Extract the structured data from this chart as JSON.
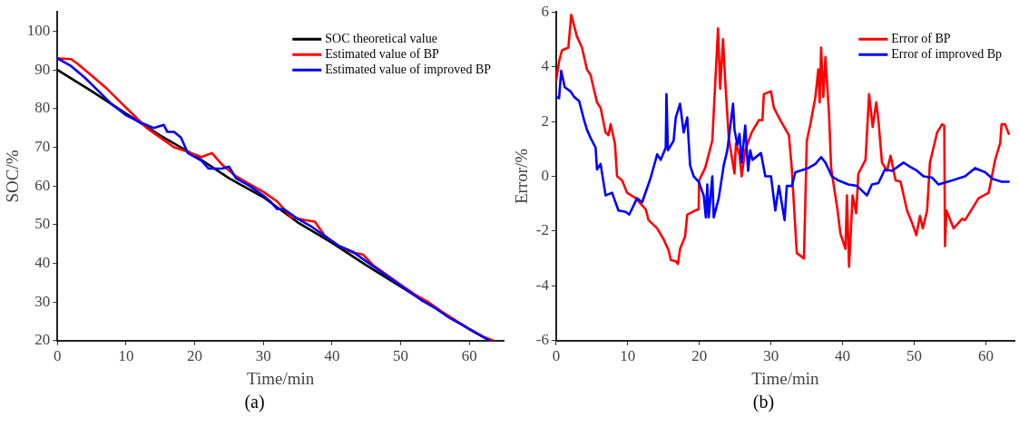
{
  "chart_data": [
    {
      "type": "line",
      "xlabel": "Time/min",
      "ylabel": "SOC/%",
      "xlim": [
        0,
        65
      ],
      "xticks": [
        0,
        10,
        20,
        30,
        40,
        50,
        60
      ],
      "ylim": [
        20,
        105
      ],
      "yticks": [
        20,
        30,
        40,
        50,
        60,
        70,
        80,
        90,
        100
      ],
      "grid": false,
      "legend": "top right",
      "marker": "none",
      "line_style": "solid",
      "annotations": [
        "(a)"
      ],
      "series": [
        {
          "name": "SOC theoretical value",
          "color": "#000000",
          "x": [
            0,
            5,
            10,
            15,
            20,
            25,
            30,
            35,
            40,
            45,
            50,
            55,
            60,
            63
          ],
          "values": [
            90,
            84.5,
            78.7,
            73,
            67.9,
            62,
            57.1,
            50.6,
            45.3,
            39.5,
            34,
            28.5,
            23,
            20
          ]
        },
        {
          "name": "Estimated value of BP",
          "color": "#ff0000",
          "x": [
            0,
            2,
            3,
            5,
            7,
            9,
            11,
            13,
            15,
            17,
            19,
            21,
            22.5,
            24,
            26,
            28,
            30,
            32,
            34,
            36,
            37.5,
            39,
            41,
            43,
            44.5,
            46,
            48,
            50,
            52,
            54,
            56,
            58,
            60,
            62,
            63.5
          ],
          "values": [
            93,
            92.8,
            91.5,
            88.5,
            85.5,
            82,
            78.5,
            75,
            72.5,
            70,
            68.8,
            67.5,
            68.5,
            65.5,
            62.5,
            60.5,
            58.5,
            56,
            52,
            51.2,
            50.8,
            47,
            44.5,
            42.8,
            42.3,
            39.5,
            37,
            34.5,
            32,
            30,
            27.5,
            25.2,
            23,
            21,
            20
          ]
        },
        {
          "name": "Estimated value of improved BP",
          "color": "#0000ff",
          "x": [
            0,
            2,
            4,
            6,
            8,
            10,
            12,
            14,
            15.5,
            16,
            17,
            18,
            19,
            21,
            22,
            24,
            25,
            26,
            28,
            30,
            31,
            32,
            33,
            35,
            37,
            39,
            41,
            43,
            45,
            47,
            49,
            51,
            53,
            55,
            57,
            59,
            61,
            63
          ],
          "values": [
            93,
            91,
            88,
            84.5,
            81,
            78.3,
            76.5,
            75,
            75.8,
            74,
            74,
            72.5,
            68.5,
            66.5,
            64.5,
            64.5,
            65,
            62,
            60,
            57.5,
            56,
            54,
            54,
            51.5,
            49.5,
            47,
            44.5,
            43,
            40.5,
            38,
            35.5,
            33,
            30.5,
            28.5,
            26,
            24,
            22,
            20
          ]
        }
      ]
    },
    {
      "type": "line",
      "xlabel": "Time/min",
      "ylabel": "Error/%",
      "xlim": [
        0,
        64
      ],
      "xticks": [
        0,
        10,
        20,
        30,
        40,
        50,
        60
      ],
      "ylim": [
        -6,
        6
      ],
      "yticks": [
        -6,
        -4,
        -2,
        0,
        2,
        4,
        6
      ],
      "grid": false,
      "legend": "top right",
      "marker": "none",
      "line_style": "solid",
      "annotations": [
        "(b)"
      ],
      "series": [
        {
          "name": "Error of BP",
          "color": "#ff0000",
          "x": [
            0,
            0.4,
            0.8,
            1.7,
            2.1,
            2.5,
            2.9,
            3.6,
            4.3,
            4.8,
            5.7,
            6.2,
            6.9,
            7.3,
            7.6,
            8.2,
            8.5,
            9.2,
            9.9,
            11.1,
            12.5,
            12.9,
            14.1,
            15.0,
            15.7,
            16.0,
            16.7,
            17.0,
            17.3,
            18.0,
            18.3,
            19.4,
            19.9,
            19.95,
            20.8,
            21.8,
            22.6,
            22.9,
            23.3,
            23.6,
            24.1,
            24.9,
            25.1,
            25.6,
            25.9,
            26.4,
            27.3,
            28.3,
            28.8,
            29.0,
            30.0,
            30.4,
            31.3,
            32.5,
            32.9,
            33.6,
            34.6,
            35.0,
            35.5,
            36.2,
            36.6,
            36.8,
            37.0,
            37.3,
            37.6,
            38.1,
            38.4,
            39.3,
            39.7,
            40.4,
            40.6,
            40.9,
            41.4,
            41.9,
            42.2,
            43.2,
            43.7,
            44.2,
            44.7,
            45.0,
            45.5,
            46.2,
            46.7,
            47.4,
            48.1,
            49.0,
            49.7,
            50.3,
            50.8,
            51.2,
            51.8,
            52.2,
            53.2,
            53.9,
            54.2,
            54.3,
            54.5,
            55.5,
            56.7,
            57.1,
            59.0,
            60.4,
            61.3,
            62.0,
            62.2,
            62.7,
            63.2
          ],
          "values": [
            3.5,
            4.2,
            4.6,
            4.7,
            5.9,
            5.5,
            5.1,
            4.7,
            3.9,
            3.7,
            2.7,
            2.5,
            1.6,
            1.5,
            1.9,
            1.2,
            0,
            -0.15,
            -0.6,
            -0.8,
            -1.2,
            -1.6,
            -1.9,
            -2.3,
            -2.7,
            -3.05,
            -3.1,
            -3.2,
            -2.65,
            -2.2,
            -1.4,
            -1.25,
            -1.2,
            -0.15,
            0.3,
            1.3,
            5.4,
            3.2,
            5,
            3.5,
            1.4,
            0.1,
            1.2,
            0.8,
            0,
            0.95,
            1.6,
            2.05,
            2.05,
            3,
            3.1,
            2.5,
            2.05,
            1.5,
            0.3,
            -2.8,
            -3,
            1.3,
            1.9,
            2.9,
            3.9,
            2.7,
            4.7,
            2.9,
            4.35,
            2.3,
            0.3,
            -1.25,
            -2.1,
            -2.65,
            -0.7,
            -3.3,
            -0.7,
            -1.35,
            0.1,
            0.6,
            3,
            1.8,
            2.7,
            2.05,
            0.5,
            0.2,
            0.75,
            -0.15,
            -0.2,
            -1.25,
            -1.7,
            -2.15,
            -1.45,
            -1.9,
            -1.25,
            0.5,
            1.6,
            1.9,
            1.85,
            -2.55,
            -1.25,
            -1.9,
            -1.55,
            -1.6,
            -0.8,
            -0.6,
            0.6,
            1.2,
            1.9,
            1.9,
            1.55
          ]
        },
        {
          "name": "Error of improved Bp",
          "color": "#0000ff",
          "x": [
            0,
            0.4,
            0.7,
            1.2,
            2.0,
            2.5,
            3.2,
            3.9,
            4.3,
            4.9,
            5.5,
            5.7,
            6.2,
            6.9,
            7.8,
            8.7,
            9.7,
            10.2,
            11.3,
            12.0,
            13.2,
            14.1,
            14.6,
            15.3,
            15.4,
            15.6,
            16.4,
            16.7,
            17.3,
            17.8,
            18.3,
            18.7,
            19.2,
            19.9,
            20.6,
            20.9,
            21.1,
            21.3,
            21.8,
            22.0,
            22.7,
            23.4,
            23.9,
            24.7,
            24.9,
            25.3,
            25.6,
            25.9,
            26.4,
            26.8,
            27.1,
            27.4,
            28.6,
            29.2,
            30.0,
            30.6,
            31.1,
            31.9,
            32.2,
            32.9,
            33.4,
            35.2,
            36.2,
            37.0,
            37.6,
            38.5,
            39.4,
            40.8,
            42.0,
            43.4,
            44.1,
            45.0,
            45.9,
            46.9,
            48.5,
            49.4,
            50.4,
            51.3,
            52.5,
            53.4,
            55.3,
            57.1,
            58.5,
            59.9,
            61.0,
            62.2,
            63.2
          ],
          "values": [
            2.9,
            2.85,
            3.85,
            3.25,
            3.1,
            2.9,
            2.75,
            2.05,
            1.7,
            1.35,
            1.05,
            0.25,
            0.45,
            -0.7,
            -0.6,
            -1.25,
            -1.3,
            -1.4,
            -0.8,
            -0.95,
            -0.05,
            0.8,
            0.6,
            1.05,
            3,
            0.95,
            1.3,
            2.15,
            2.65,
            1.6,
            2.15,
            0.4,
            0,
            -0.2,
            -0.7,
            -1.5,
            -0.3,
            -1.5,
            0,
            -1.5,
            -0.8,
            0.4,
            0.95,
            2.65,
            1.7,
            1.15,
            1.55,
            0.5,
            1.85,
            0.2,
            0.95,
            0.6,
            0.85,
            0,
            0,
            -1.25,
            -0.35,
            -1.6,
            -0.35,
            -0.35,
            0.15,
            0.3,
            0.45,
            0.7,
            0.5,
            0,
            -0.15,
            -0.3,
            -0.35,
            -0.7,
            -0.3,
            -0.25,
            0.25,
            0.2,
            0.5,
            0.35,
            0.2,
            0,
            -0.05,
            -0.3,
            -0.15,
            0,
            0.3,
            0.15,
            -0.1,
            -0.2,
            -0.2
          ]
        }
      ]
    }
  ]
}
